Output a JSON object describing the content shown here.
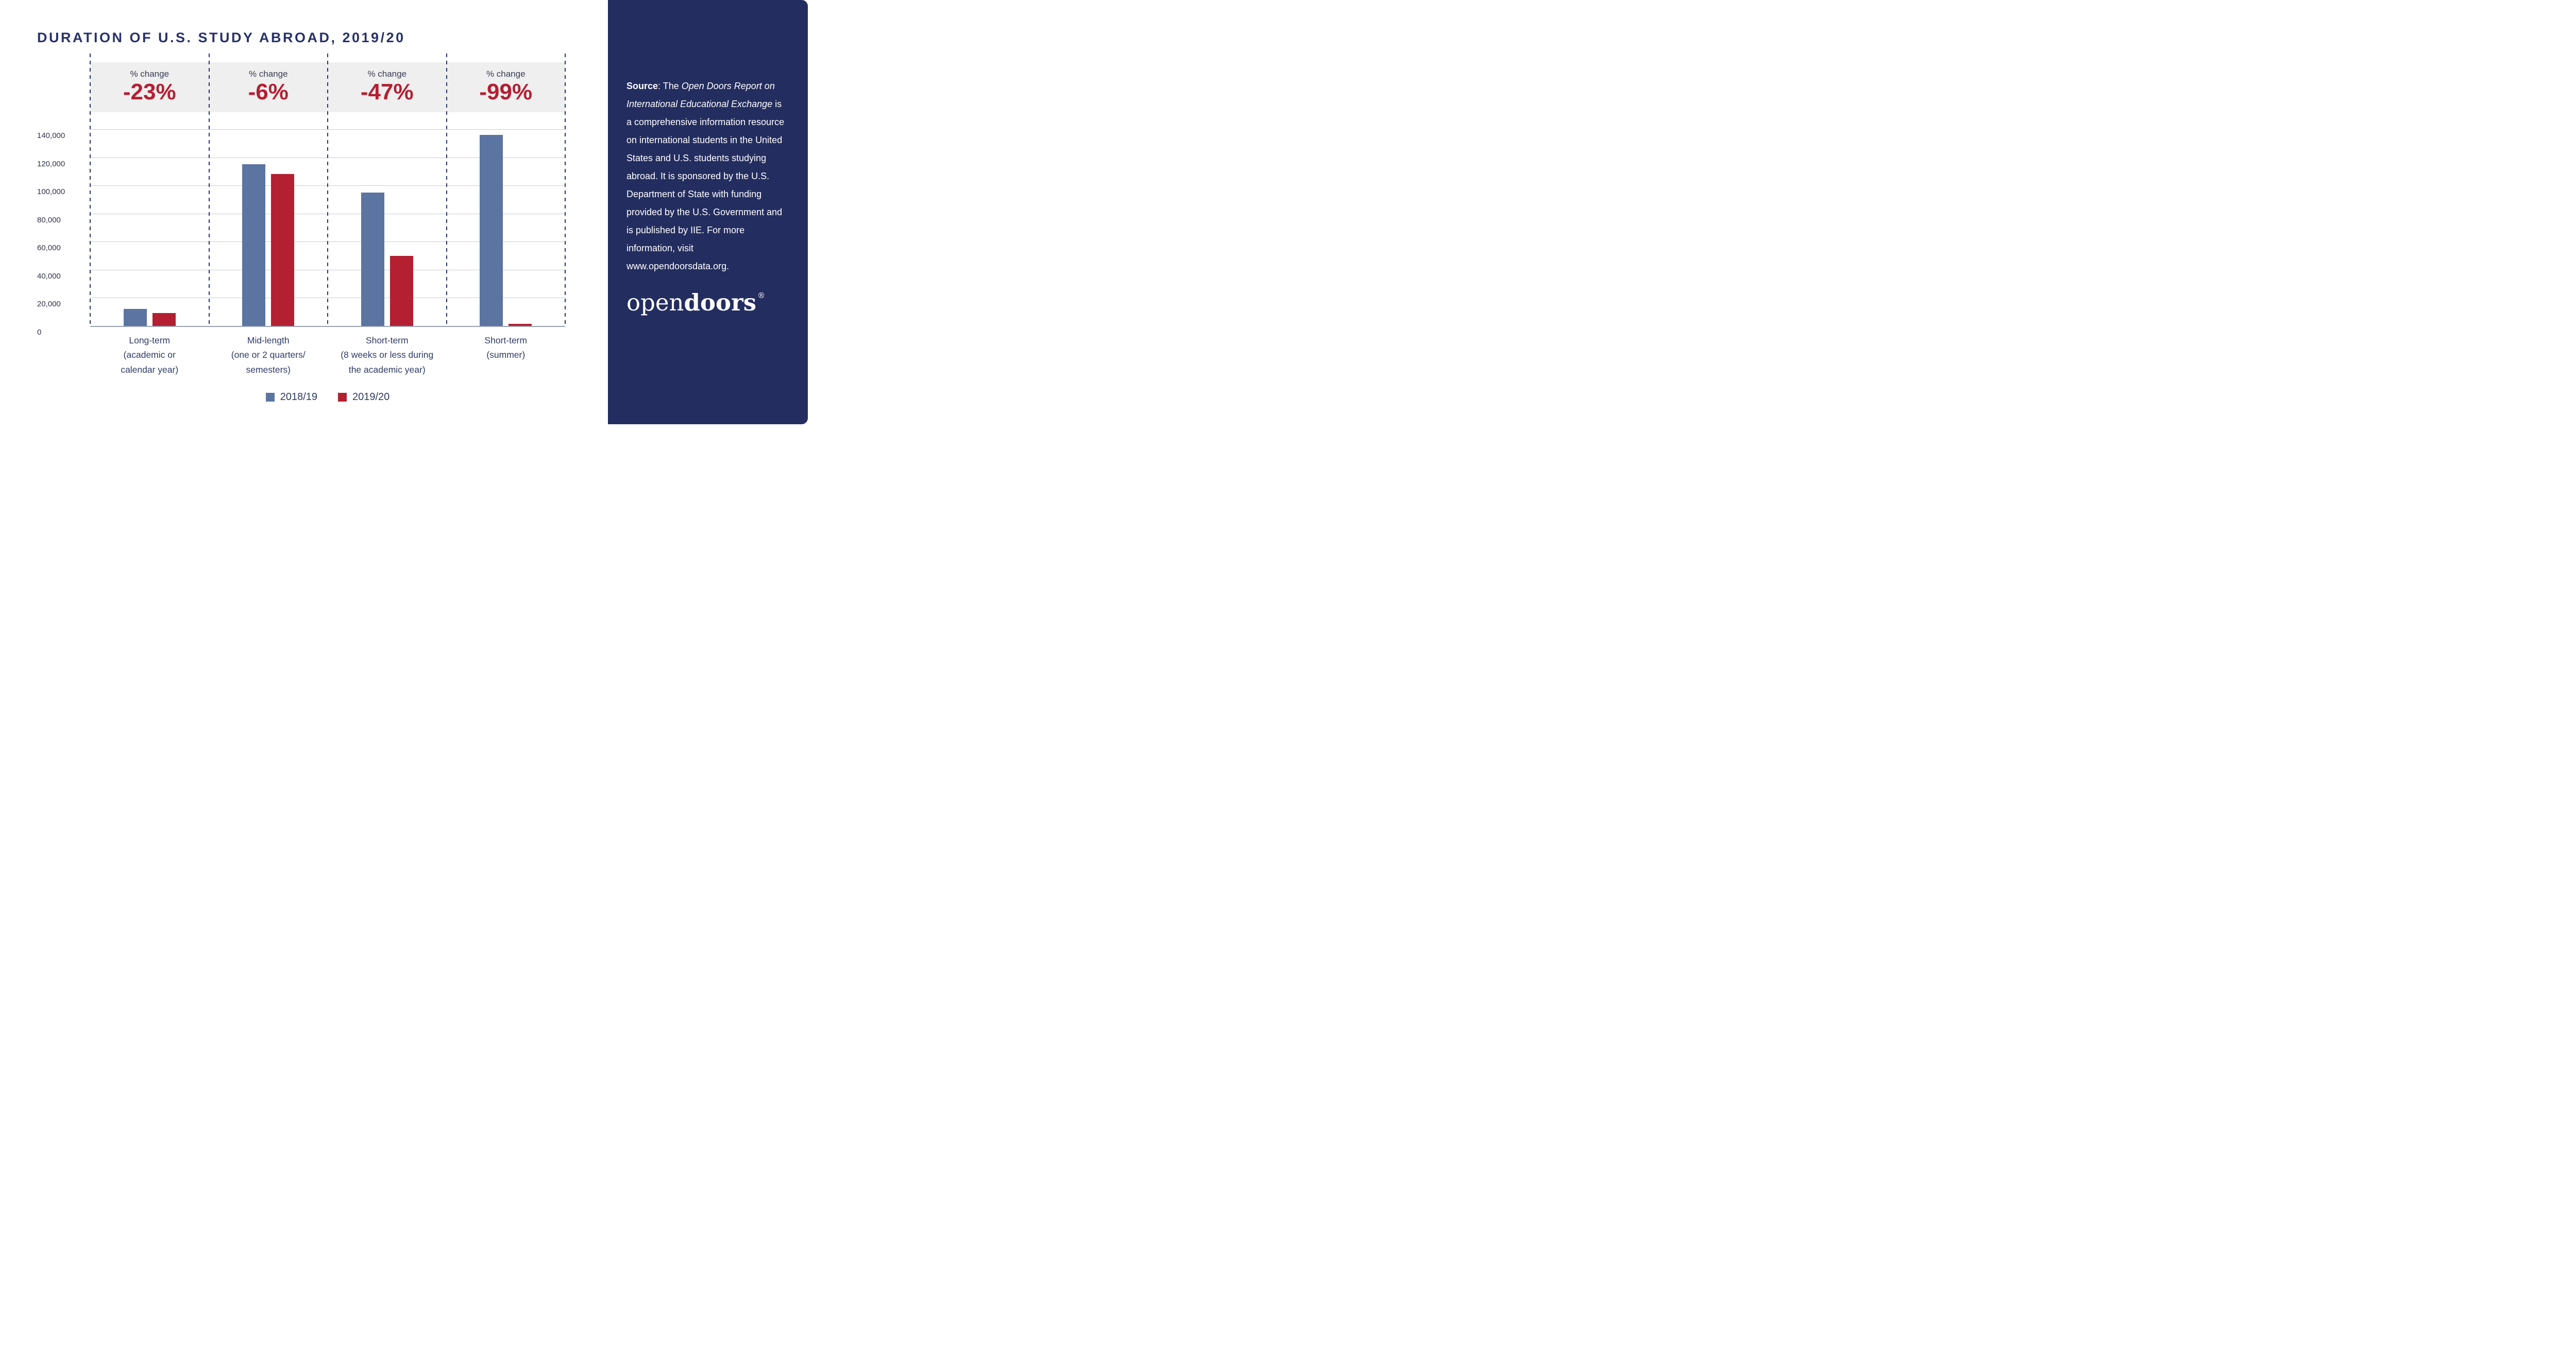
{
  "chart_data": {
    "type": "bar",
    "title": "DURATION OF U.S. STUDY ABROAD, 2019/20",
    "pct_change_caption": "% change",
    "categories": [
      "Long-term (academic or calendar year)",
      "Mid-length (one or 2 quarters/ semesters)",
      "Short-term (8 weeks or less during the academic year)",
      "Short-term (summer)"
    ],
    "groups": [
      {
        "label_lines": [
          "Long-term",
          "(academic or",
          "calendar year)"
        ],
        "pct_change": "-23%"
      },
      {
        "label_lines": [
          "Mid-length",
          "(one or 2 quarters/",
          "semesters)"
        ],
        "pct_change": "-6%"
      },
      {
        "label_lines": [
          "Short-term",
          "(8 weeks or less during",
          "the academic year)"
        ],
        "pct_change": "-47%"
      },
      {
        "label_lines": [
          "Short-term",
          "(summer)"
        ],
        "pct_change": "-99%"
      }
    ],
    "series": [
      {
        "name": "2018/19",
        "color": "#5b74a1",
        "values": [
          12000,
          115000,
          95000,
          136000
        ]
      },
      {
        "name": "2019/20",
        "color": "#b41f31",
        "values": [
          9200,
          108000,
          50000,
          1400
        ]
      }
    ],
    "y_axis": {
      "min": 0,
      "max": 140000,
      "tick_interval": 20000,
      "tick_labels": [
        "0",
        "20,000",
        "40,000",
        "60,000",
        "80,000",
        "100,000",
        "120,000",
        "140,000"
      ]
    },
    "grid": true,
    "legend_position": "bottom",
    "colors": {
      "navy": "#232d5f",
      "title_navy": "#27316b",
      "bar_blue": "#5b74a1",
      "bar_red": "#b41f31",
      "pct_red": "#b41f31",
      "band_gray": "#efefef"
    }
  },
  "sidebar": {
    "source": {
      "label": "Source",
      "after_label": ": The ",
      "italic_title": "Open Doors Report on International Educational Exchange",
      "rest": " is a comprehensive information resource on international students in the United States and U.S. students studying abroad. It is sponsored by the U.S. Department of State with funding provided by the U.S. Government and is published by IIE. For more information, visit www.opendoorsdata.org."
    },
    "logo": {
      "open": "open",
      "doors": "doors",
      "registered": "®"
    }
  }
}
